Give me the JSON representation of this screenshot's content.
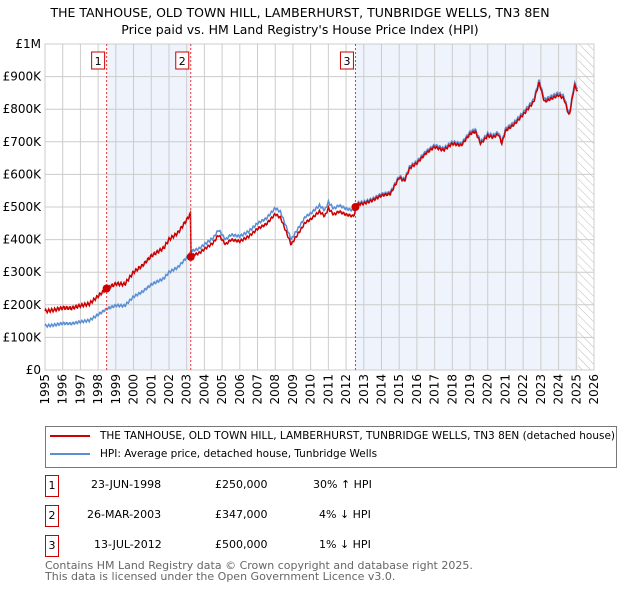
{
  "chart_data": {
    "type": "line",
    "title": "THE TANHOUSE, OLD TOWN HILL, LAMBERHURST, TUNBRIDGE WELLS, TN3 8EN",
    "subtitle": "Price paid vs. HM Land Registry's House Price Index (HPI)",
    "ylim": [
      0,
      1000000
    ],
    "xlim": [
      1995,
      2026
    ],
    "yticks": [
      {
        "v": 0,
        "l": "£0"
      },
      {
        "v": 100000,
        "l": "£100K"
      },
      {
        "v": 200000,
        "l": "£200K"
      },
      {
        "v": 300000,
        "l": "£300K"
      },
      {
        "v": 400000,
        "l": "£400K"
      },
      {
        "v": 500000,
        "l": "£500K"
      },
      {
        "v": 600000,
        "l": "£600K"
      },
      {
        "v": 700000,
        "l": "£700K"
      },
      {
        "v": 800000,
        "l": "£800K"
      },
      {
        "v": 900000,
        "l": "£900K"
      },
      {
        "v": 1000000,
        "l": "£1M"
      }
    ],
    "xticks": [
      "1995",
      "1996",
      "1997",
      "1998",
      "1999",
      "2000",
      "2001",
      "2002",
      "2003",
      "2004",
      "2005",
      "2006",
      "2007",
      "2008",
      "2009",
      "2010",
      "2011",
      "2012",
      "2013",
      "2014",
      "2015",
      "2016",
      "2017",
      "2018",
      "2019",
      "2020",
      "2021",
      "2022",
      "2023",
      "2024",
      "2025",
      "2026"
    ],
    "hpi": {
      "x": [
        1995,
        1995.5,
        1996,
        1996.5,
        1997,
        1997.5,
        1998,
        1998.5,
        1999,
        1999.5,
        2000,
        2000.5,
        2001,
        2001.3,
        2001.7,
        2002,
        2002.5,
        2003,
        2003.3,
        2003.7,
        2004,
        2004.5,
        2004.8,
        2005.2,
        2005.5,
        2006,
        2006.5,
        2007,
        2007.5,
        2008,
        2008.3,
        2008.9,
        2009.3,
        2009.7,
        2010,
        2010.5,
        2010.8,
        2011,
        2011.3,
        2011.6,
        2012,
        2012.4,
        2012.6,
        2013,
        2013.5,
        2014,
        2014.5,
        2015,
        2015.3,
        2015.6,
        2016,
        2016.5,
        2017,
        2017.5,
        2018,
        2018.5,
        2019,
        2019.3,
        2019.6,
        2020,
        2020.3,
        2020.6,
        2020.8,
        2021,
        2021.5,
        2022,
        2022.3,
        2022.6,
        2022.9,
        2023.2,
        2023.6,
        2024,
        2024.3,
        2024.6,
        2024.9,
        2025.1
      ],
      "y": [
        135000,
        138000,
        143000,
        142000,
        148000,
        152000,
        170000,
        188000,
        198000,
        197000,
        225000,
        240000,
        262000,
        270000,
        280000,
        300000,
        315000,
        345000,
        365000,
        372000,
        385000,
        405000,
        430000,
        400000,
        415000,
        410000,
        425000,
        450000,
        465000,
        497000,
        485000,
        400000,
        435000,
        470000,
        480000,
        505000,
        490000,
        515000,
        495000,
        505000,
        495000,
        490000,
        512000,
        515000,
        525000,
        540000,
        545000,
        595000,
        585000,
        625000,
        640000,
        670000,
        690000,
        680000,
        700000,
        695000,
        730000,
        738000,
        700000,
        725000,
        720000,
        730000,
        700000,
        740000,
        760000,
        790000,
        810000,
        830000,
        890000,
        830000,
        840000,
        850000,
        840000,
        785000,
        880000,
        860000
      ]
    },
    "sales": [
      {
        "id": "1",
        "x": 1998.48,
        "y": 250000,
        "date": "23-JUN-1998",
        "price": "£250,000",
        "delta": "30% ↑ HPI"
      },
      {
        "id": "2",
        "x": 2003.23,
        "y": 347000,
        "date": "26-MAR-2003",
        "price": "£347,000",
        "delta": "4% ↓ HPI"
      },
      {
        "id": "3",
        "x": 2012.53,
        "y": 500000,
        "date": "13-JUL-2012",
        "price": "£500,000",
        "delta": "1% ↓ HPI"
      }
    ],
    "colors": {
      "property": "#cc0000",
      "hpi": "#5b8fd4",
      "shade": "#eef3fc"
    },
    "legend": {
      "property": "THE TANHOUSE, OLD TOWN HILL, LAMBERHURST, TUNBRIDGE WELLS, TN3 8EN (detached house)",
      "hpi": "HPI: Average price, detached house, Tunbridge Wells"
    }
  },
  "footer": {
    "line1": "Contains HM Land Registry data © Crown copyright and database right 2025.",
    "line2": "This data is licensed under the Open Government Licence v3.0."
  }
}
